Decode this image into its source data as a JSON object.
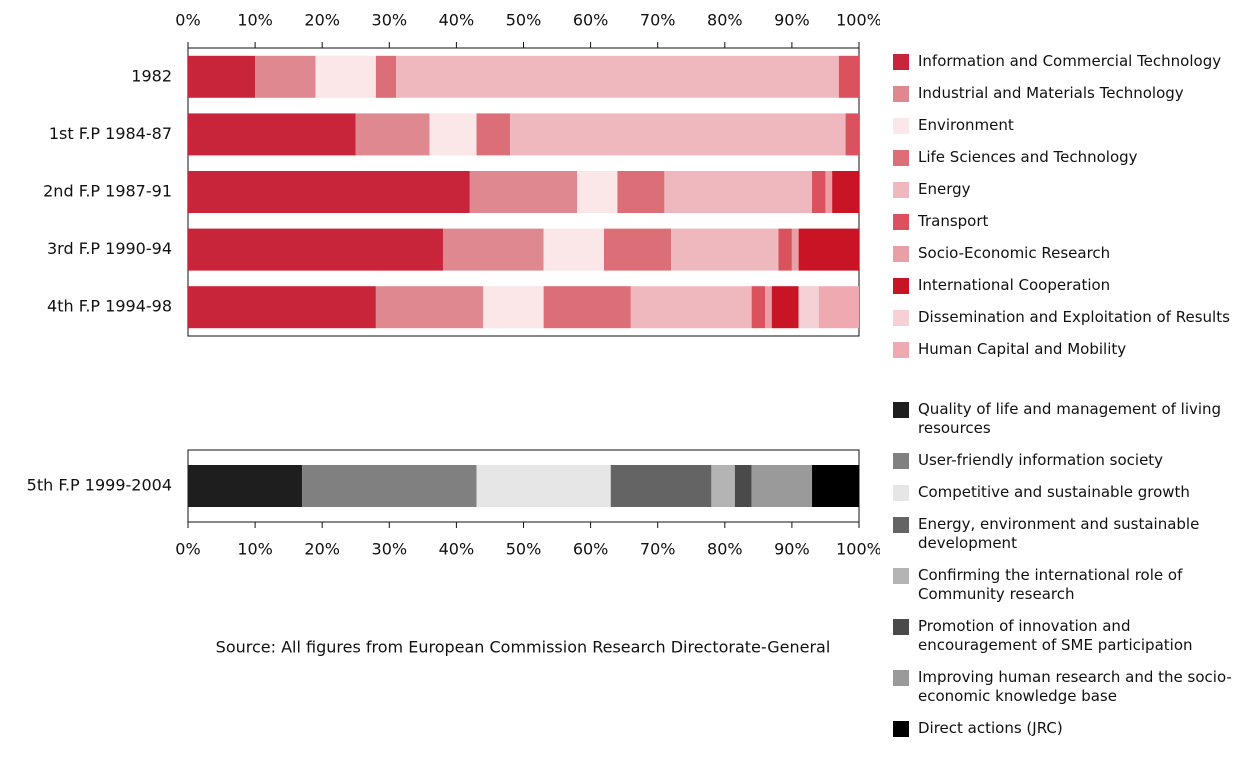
{
  "chart_data": [
    {
      "type": "bar",
      "orientation": "horizontal",
      "stacked": true,
      "categories": [
        "1982",
        "1st F.P 1984-87",
        "2nd F.P 1987-91",
        "3rd F.P 1990-94",
        "4th F.P 1994-98"
      ],
      "series": [
        {
          "name": "Information and Commercial Technology",
          "color": "#c8243a",
          "values": [
            10,
            25,
            42,
            38,
            28
          ]
        },
        {
          "name": "Industrial and Materials Technology",
          "color": "#e08890",
          "values": [
            9,
            11,
            16,
            15,
            16
          ]
        },
        {
          "name": "Environment",
          "color": "#fbe6e8",
          "values": [
            9,
            7,
            6,
            9,
            9
          ]
        },
        {
          "name": "Life Sciences and Technology",
          "color": "#dc6e78",
          "values": [
            3,
            5,
            7,
            10,
            13
          ]
        },
        {
          "name": "Energy",
          "color": "#efb8be",
          "values": [
            66,
            50,
            22,
            16,
            18
          ]
        },
        {
          "name": "Transport",
          "color": "#d9525e",
          "values": [
            3,
            2,
            2,
            2,
            2
          ]
        },
        {
          "name": "Socio-Economic Research",
          "color": "#e8a0a6",
          "values": [
            0,
            0,
            1,
            1,
            1
          ]
        },
        {
          "name": "International Cooperation",
          "color": "#c81424",
          "values": [
            0,
            0,
            4,
            9,
            4
          ]
        },
        {
          "name": "Dissemination and Exploitation of Results",
          "color": "#f5d0d4",
          "values": [
            0,
            0,
            0,
            0,
            3
          ]
        },
        {
          "name": "Human Capital and Mobility",
          "color": "#eeaab0",
          "values": [
            0,
            0,
            0,
            0,
            6
          ]
        }
      ],
      "xlim": [
        0,
        100
      ],
      "xticks": [
        {
          "value": 0,
          "label": "0%"
        },
        {
          "value": 10,
          "label": "10%"
        },
        {
          "value": 20,
          "label": "20%"
        },
        {
          "value": 30,
          "label": "30%"
        },
        {
          "value": 40,
          "label": "40%"
        },
        {
          "value": 50,
          "label": "50%"
        },
        {
          "value": 60,
          "label": "60%"
        },
        {
          "value": 70,
          "label": "70%"
        },
        {
          "value": 80,
          "label": "80%"
        },
        {
          "value": 90,
          "label": "90%"
        },
        {
          "value": 100,
          "label": "100%"
        }
      ],
      "xaxis_position": "top",
      "legend": "right"
    },
    {
      "type": "bar",
      "orientation": "horizontal",
      "stacked": true,
      "categories": [
        "5th F.P 1999-2004"
      ],
      "series": [
        {
          "name": "Quality of life and management of living resources",
          "color": "#1e1e1e",
          "values": [
            17
          ]
        },
        {
          "name": "User-friendly information society",
          "color": "#808080",
          "values": [
            26
          ]
        },
        {
          "name": "Competitive and sustainable growth",
          "color": "#e6e6e6",
          "values": [
            20
          ]
        },
        {
          "name": "Energy, environment and sustainable development",
          "color": "#646464",
          "values": [
            15
          ]
        },
        {
          "name": "Confirming the international role of Community research",
          "color": "#b4b4b4",
          "values": [
            3.5
          ]
        },
        {
          "name": "Promotion of innovation and encouragement of SME participation",
          "color": "#4a4a4a",
          "values": [
            2.5
          ]
        },
        {
          "name": "Improving human research and the socio-economic knowledge base",
          "color": "#9a9a9a",
          "values": [
            9
          ]
        },
        {
          "name": "Direct actions (JRC)",
          "color": "#000000",
          "values": [
            7
          ]
        }
      ],
      "xlim": [
        0,
        100
      ],
      "xticks": [
        {
          "value": 0,
          "label": "0%"
        },
        {
          "value": 10,
          "label": "10%"
        },
        {
          "value": 20,
          "label": "20%"
        },
        {
          "value": 30,
          "label": "30%"
        },
        {
          "value": 40,
          "label": "40%"
        },
        {
          "value": 50,
          "label": "50%"
        },
        {
          "value": 60,
          "label": "60%"
        },
        {
          "value": 70,
          "label": "70%"
        },
        {
          "value": 80,
          "label": "80%"
        },
        {
          "value": 90,
          "label": "90%"
        },
        {
          "value": 100,
          "label": "100%"
        }
      ],
      "xaxis_position": "bottom",
      "legend": "right"
    }
  ],
  "source": "Source: All figures from European Commission Research Directorate-General"
}
